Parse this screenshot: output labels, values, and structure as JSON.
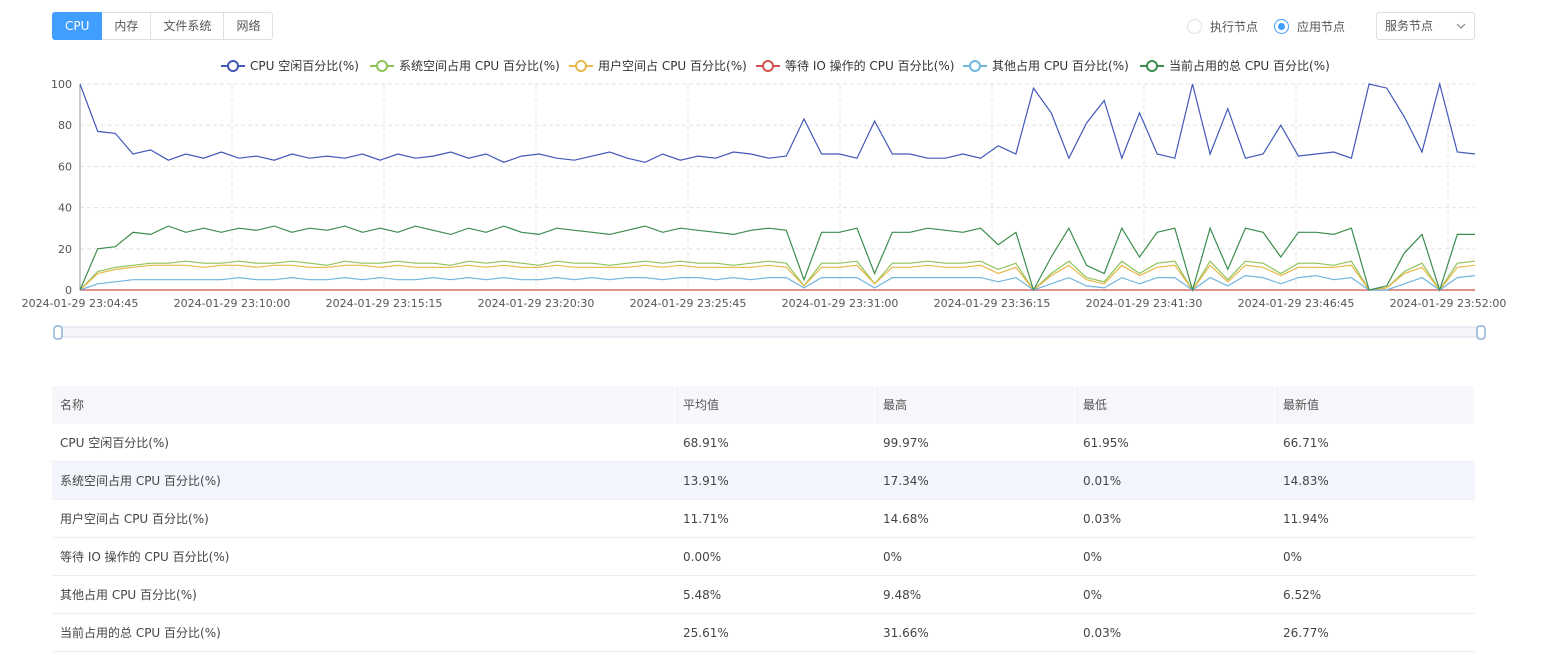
{
  "tabs": [
    "CPU",
    "内存",
    "文件系统",
    "网络"
  ],
  "radios": [
    {
      "label": "执行节点",
      "checked": false
    },
    {
      "label": "应用节点",
      "checked": true
    }
  ],
  "select": {
    "value": "服务节点",
    "icon": "chevron-down-icon"
  },
  "chart_data": {
    "type": "line",
    "ylim": [
      0,
      100
    ],
    "yticks": [
      0,
      20,
      40,
      60,
      80,
      100
    ],
    "xticks": [
      "2024-01-29 23:04:45",
      "2024-01-29 23:10:00",
      "2024-01-29 23:15:15",
      "2024-01-29 23:20:30",
      "2024-01-29 23:25:45",
      "2024-01-29 23:31:00",
      "2024-01-29 23:36:15",
      "2024-01-29 23:41:30",
      "2024-01-29 23:46:45",
      "2024-01-29 23:52:00"
    ],
    "grid": true,
    "legend": "top-center",
    "series": [
      {
        "name": "CPU 空闲百分比(%)",
        "color": "#4258b8",
        "values": [
          100,
          77,
          76,
          66,
          68,
          63,
          66,
          64,
          67,
          64,
          65,
          63,
          66,
          64,
          65,
          64,
          66,
          63,
          66,
          64,
          65,
          67,
          64,
          66,
          62,
          65,
          66,
          64,
          63,
          65,
          67,
          64,
          62,
          66,
          63,
          65,
          64,
          67,
          66,
          64,
          65,
          83,
          66,
          66,
          64,
          82,
          66,
          66,
          64,
          64,
          66,
          64,
          70,
          66,
          98,
          86,
          64,
          81,
          92,
          64,
          86,
          66,
          64,
          100,
          66,
          88,
          64,
          66,
          80,
          65,
          66,
          67,
          64,
          100,
          98,
          84,
          67,
          100,
          67,
          66
        ]
      },
      {
        "name": "系统空间占用 CPU 百分比(%)",
        "color": "#8fc45a",
        "values": [
          0,
          9,
          11,
          12,
          13,
          13,
          14,
          13,
          13,
          14,
          13,
          13,
          14,
          13,
          12,
          14,
          13,
          13,
          14,
          13,
          13,
          12,
          14,
          13,
          14,
          13,
          12,
          14,
          13,
          13,
          12,
          13,
          14,
          13,
          14,
          13,
          13,
          12,
          13,
          14,
          13,
          2,
          13,
          13,
          14,
          3,
          13,
          13,
          14,
          13,
          13,
          14,
          10,
          13,
          0,
          8,
          14,
          6,
          4,
          14,
          8,
          13,
          14,
          0,
          14,
          5,
          14,
          13,
          8,
          13,
          13,
          12,
          14,
          0,
          1,
          9,
          13,
          0,
          13,
          14
        ]
      },
      {
        "name": "用户空间占 CPU 百分比(%)",
        "color": "#e8b84a",
        "values": [
          0,
          8,
          10,
          11,
          12,
          12,
          12,
          11,
          12,
          12,
          11,
          12,
          12,
          11,
          11,
          12,
          12,
          11,
          12,
          11,
          11,
          11,
          12,
          11,
          12,
          11,
          11,
          12,
          11,
          11,
          11,
          11,
          12,
          11,
          12,
          11,
          11,
          11,
          11,
          12,
          11,
          2,
          11,
          11,
          12,
          3,
          11,
          11,
          12,
          11,
          11,
          12,
          8,
          11,
          0,
          7,
          12,
          5,
          3,
          12,
          7,
          11,
          12,
          0,
          12,
          4,
          12,
          11,
          7,
          11,
          11,
          11,
          12,
          0,
          1,
          8,
          11,
          0,
          11,
          12
        ]
      },
      {
        "name": "等待 IO 操作的 CPU 百分比(%)",
        "color": "#d0504a",
        "values": [
          0,
          0,
          0,
          0,
          0,
          0,
          0,
          0,
          0,
          0,
          0,
          0,
          0,
          0,
          0,
          0,
          0,
          0,
          0,
          0,
          0,
          0,
          0,
          0,
          0,
          0,
          0,
          0,
          0,
          0,
          0,
          0,
          0,
          0,
          0,
          0,
          0,
          0,
          0,
          0,
          0,
          0,
          0,
          0,
          0,
          0,
          0,
          0,
          0,
          0,
          0,
          0,
          0,
          0,
          0,
          0,
          0,
          0,
          0,
          0,
          0,
          0,
          0,
          0,
          0,
          0,
          0,
          0,
          0,
          0,
          0,
          0,
          0,
          0,
          0,
          0,
          0,
          0,
          0,
          0
        ]
      },
      {
        "name": "其他占用 CPU 百分比(%)",
        "color": "#72b6de",
        "values": [
          0,
          3,
          4,
          5,
          5,
          5,
          5,
          5,
          5,
          6,
          5,
          5,
          6,
          5,
          5,
          6,
          5,
          6,
          5,
          5,
          6,
          5,
          6,
          5,
          6,
          5,
          5,
          6,
          5,
          6,
          5,
          6,
          6,
          5,
          6,
          6,
          5,
          6,
          5,
          6,
          6,
          1,
          6,
          6,
          6,
          1,
          6,
          6,
          6,
          6,
          6,
          6,
          4,
          6,
          0,
          3,
          6,
          2,
          1,
          6,
          3,
          6,
          6,
          0,
          6,
          2,
          7,
          6,
          3,
          6,
          7,
          5,
          6,
          0,
          0,
          3,
          6,
          0,
          6,
          7
        ]
      },
      {
        "name": "当前占用的总 CPU 百分比(%)",
        "color": "#3c8c4c",
        "values": [
          0,
          20,
          21,
          28,
          27,
          31,
          28,
          30,
          28,
          30,
          29,
          31,
          28,
          30,
          29,
          31,
          28,
          30,
          28,
          31,
          29,
          27,
          30,
          28,
          31,
          28,
          27,
          30,
          29,
          28,
          27,
          29,
          31,
          28,
          30,
          29,
          28,
          27,
          29,
          30,
          29,
          5,
          28,
          28,
          30,
          8,
          28,
          28,
          30,
          29,
          28,
          30,
          22,
          28,
          0,
          16,
          30,
          12,
          8,
          30,
          16,
          28,
          30,
          0,
          30,
          10,
          30,
          28,
          16,
          28,
          28,
          27,
          30,
          0,
          2,
          18,
          27,
          0,
          27,
          27
        ]
      }
    ]
  },
  "table": {
    "headers": [
      "名称",
      "平均值",
      "最高",
      "最低",
      "最新值"
    ],
    "rows": [
      [
        "CPU 空闲百分比(%)",
        "68.91%",
        "99.97%",
        "61.95%",
        "66.71%"
      ],
      [
        "系统空间占用 CPU 百分比(%)",
        "13.91%",
        "17.34%",
        "0.01%",
        "14.83%"
      ],
      [
        "用户空间占 CPU 百分比(%)",
        "11.71%",
        "14.68%",
        "0.03%",
        "11.94%"
      ],
      [
        "等待 IO 操作的 CPU 百分比(%)",
        "0.00%",
        "0%",
        "0%",
        "0%"
      ],
      [
        "其他占用 CPU 百分比(%)",
        "5.48%",
        "9.48%",
        "0%",
        "6.52%"
      ],
      [
        "当前占用的总 CPU 百分比(%)",
        "25.61%",
        "31.66%",
        "0.03%",
        "26.77%"
      ]
    ]
  }
}
